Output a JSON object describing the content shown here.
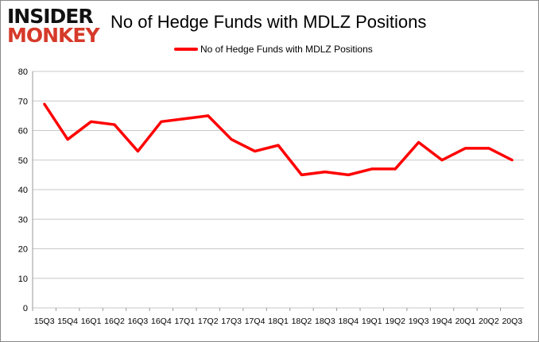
{
  "logo": {
    "line1": "INSIDER",
    "line2": "MONKEY"
  },
  "chart_data": {
    "type": "line",
    "title": "No of Hedge Funds with MDLZ Positions",
    "xlabel": "",
    "ylabel": "",
    "ylim": [
      0,
      80
    ],
    "yticks": [
      0,
      10,
      20,
      30,
      40,
      50,
      60,
      70,
      80
    ],
    "grid": true,
    "legend": "top",
    "categories": [
      "15Q3",
      "15Q4",
      "16Q1",
      "16Q2",
      "16Q3",
      "16Q4",
      "17Q1",
      "17Q2",
      "17Q3",
      "17Q4",
      "18Q1",
      "18Q2",
      "18Q3",
      "18Q4",
      "19Q1",
      "19Q2",
      "19Q3",
      "19Q4",
      "20Q1",
      "20Q2",
      "20Q3"
    ],
    "series": [
      {
        "name": "No of Hedge Funds with MDLZ Positions",
        "color": "#ff0000",
        "values": [
          69,
          57,
          63,
          62,
          53,
          63,
          64,
          65,
          57,
          53,
          55,
          45,
          46,
          45,
          47,
          47,
          56,
          50,
          54,
          54,
          50
        ]
      }
    ]
  }
}
